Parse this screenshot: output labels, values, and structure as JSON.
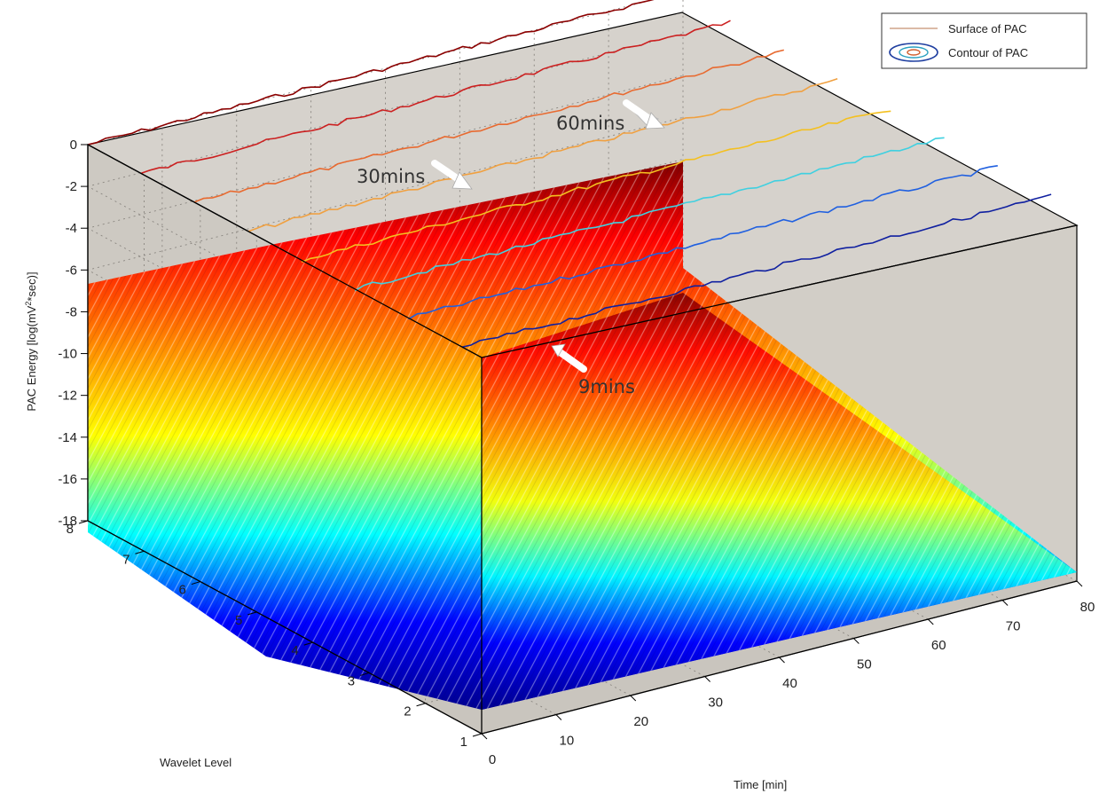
{
  "chart_data": {
    "type": "surface3d",
    "title": "",
    "xlabel": "Time [min]",
    "ylabel": "Wavelet Level",
    "zlabel": "PAC Energy [log(mV^2*sec)]",
    "x_range": [
      0,
      80
    ],
    "y_range": [
      1,
      8
    ],
    "z_range": [
      -18,
      0
    ],
    "x_ticks": [
      "0",
      "10",
      "20",
      "30",
      "40",
      "50",
      "60",
      "70",
      "80"
    ],
    "y_ticks": [
      "1",
      "2",
      "3",
      "4",
      "5",
      "6",
      "7",
      "8"
    ],
    "z_ticks": [
      "0",
      "-2",
      "-4",
      "-6",
      "-8",
      "-10",
      "-12",
      "-14",
      "-16",
      "-18"
    ],
    "grid": true,
    "legend_position": "top-right",
    "legend": [
      {
        "label": "Surface of PAC",
        "kind": "surface"
      },
      {
        "label": "Contour of PAC",
        "kind": "contour"
      }
    ],
    "annotations": [
      {
        "text": "60mins",
        "x": 60
      },
      {
        "text": "30mins",
        "x": 30
      },
      {
        "text": "9mins",
        "x": 9
      }
    ],
    "surface_levels": [
      {
        "level": 8,
        "energy_start": -6.8,
        "energy_end": -6.8
      },
      {
        "level": 7,
        "energy_start": -8.2,
        "energy_end": -8.2
      },
      {
        "level": 6,
        "energy_start": -11.4,
        "energy_end": -11.6
      },
      {
        "level": 5,
        "energy_start": -12.6,
        "energy_end": -12.6
      },
      {
        "level": 4,
        "energy_start": -14.6,
        "energy_end": -14.8
      },
      {
        "level": 3,
        "energy_start": -16.6,
        "energy_end": -16.8
      },
      {
        "level": 2,
        "energy_start": -17.8,
        "energy_end": -18
      },
      {
        "level": 1,
        "energy_start": -18,
        "energy_end": -18
      }
    ],
    "colors": {
      "pane": "#d6d2cc",
      "colormap": [
        "#00008f",
        "#0000ff",
        "#00ffff",
        "#ffff00",
        "#ff7f00",
        "#ff0000",
        "#800000"
      ]
    }
  },
  "annotation_labels": {
    "a60": "60mins",
    "a30": "30mins",
    "a9": "9mins"
  },
  "legend_labels": {
    "surface": "Surface of PAC",
    "contour": "Contour of PAC"
  },
  "axis_labels": {
    "x": "Time [min]",
    "y": "Wavelet Level",
    "z": "PAC Energy [log(mV",
    "z_sup": "2",
    "z_end": "*sec)]"
  }
}
